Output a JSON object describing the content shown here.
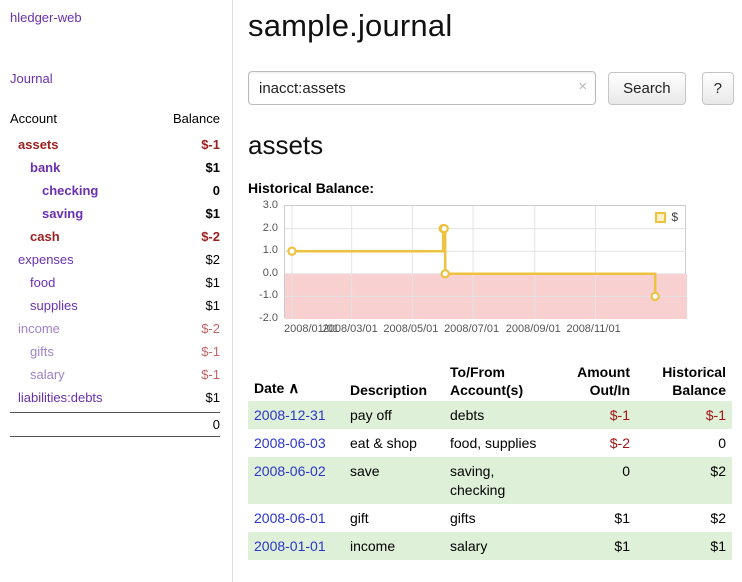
{
  "app": {
    "title": "hledger-web",
    "nav_journal": "Journal"
  },
  "sidebar": {
    "header": {
      "account": "Account",
      "balance": "Balance"
    },
    "accounts": [
      {
        "name": "assets",
        "balance": "$-1",
        "level": 1,
        "name_style": "neg-bold",
        "balance_style": "neg-bold"
      },
      {
        "name": "bank",
        "balance": "$1",
        "level": 2,
        "name_style": "link-bold",
        "balance_style": "bold"
      },
      {
        "name": "checking",
        "balance": "0",
        "level": 3,
        "name_style": "link-bold",
        "balance_style": "bold"
      },
      {
        "name": "saving",
        "balance": "$1",
        "level": 3,
        "name_style": "link-bold",
        "balance_style": "bold"
      },
      {
        "name": "cash",
        "balance": "$-2",
        "level": 2,
        "name_style": "neg-bold",
        "balance_style": "neg-bold"
      },
      {
        "name": "expenses",
        "balance": "$2",
        "level": 1,
        "name_style": "link",
        "balance_style": "plain"
      },
      {
        "name": "food",
        "balance": "$1",
        "level": 2,
        "name_style": "link",
        "balance_style": "plain"
      },
      {
        "name": "supplies",
        "balance": "$1",
        "level": 2,
        "name_style": "link",
        "balance_style": "plain"
      },
      {
        "name": "income",
        "balance": "$-2",
        "level": 1,
        "name_style": "link-muted",
        "balance_style": "neg-muted"
      },
      {
        "name": "gifts",
        "balance": "$-1",
        "level": 2,
        "name_style": "link-muted",
        "balance_style": "neg-muted"
      },
      {
        "name": "salary",
        "balance": "$-1",
        "level": 2,
        "name_style": "link-muted",
        "balance_style": "neg-muted"
      },
      {
        "name": "liabilities:debts",
        "balance": "$1",
        "level": 1,
        "name_style": "link",
        "balance_style": "plain"
      }
    ],
    "total": "0"
  },
  "main": {
    "title": "sample.journal",
    "search": {
      "value": "inacct:assets",
      "clear": "×",
      "button": "Search",
      "help": "?"
    },
    "heading": "assets",
    "chart_label": "Historical Balance:"
  },
  "chart_data": {
    "type": "line",
    "step": true,
    "title": "Historical Balance",
    "series": [
      {
        "name": "$",
        "color": "#edc240",
        "points": [
          [
            "2008-01-01",
            1
          ],
          [
            "2008-06-01",
            2
          ],
          [
            "2008-06-02",
            2
          ],
          [
            "2008-06-03",
            0
          ],
          [
            "2008-12-31",
            -1
          ]
        ]
      }
    ],
    "x_ticks": [
      "2008/01/01",
      "2008/03/01",
      "2008/05/01",
      "2008/07/01",
      "2008/09/01",
      "2008/11/01"
    ],
    "x_range": [
      "2007-12-25",
      "2009-02-01"
    ],
    "y_ticks": [
      "3.0",
      "2.0",
      "1.0",
      "0.0",
      "-1.0",
      "-2.0"
    ],
    "ylim": [
      -2,
      3
    ],
    "grid": true,
    "negative_region_color": "#f8d0d0",
    "legend": {
      "label": "$",
      "position": "top-right"
    }
  },
  "table": {
    "headers": [
      {
        "line1": "Date",
        "line2": "",
        "sort": "∧",
        "align": "left"
      },
      {
        "line1": "Description",
        "line2": "",
        "sort": "",
        "align": "left"
      },
      {
        "line1": "To/From",
        "line2": "Account(s)",
        "sort": "",
        "align": "left"
      },
      {
        "line1": "Amount",
        "line2": "Out/In",
        "sort": "",
        "align": "right"
      },
      {
        "line1": "Historical",
        "line2": "Balance",
        "sort": "",
        "align": "right"
      }
    ],
    "rows": [
      {
        "date": "2008-12-31",
        "description": "pay off",
        "accounts": "debts",
        "amount": "$-1",
        "balance": "$-1",
        "shaded": true
      },
      {
        "date": "2008-06-03",
        "description": "eat & shop",
        "accounts": "food, supplies",
        "amount": "$-2",
        "balance": "0",
        "shaded": false
      },
      {
        "date": "2008-06-02",
        "description": "save",
        "accounts": "saving, checking",
        "amount": "0",
        "balance": "$2",
        "shaded": true
      },
      {
        "date": "2008-06-01",
        "description": "gift",
        "accounts": "gifts",
        "amount": "$1",
        "balance": "$2",
        "shaded": false
      },
      {
        "date": "2008-01-01",
        "description": "income",
        "accounts": "salary",
        "amount": "$1",
        "balance": "$1",
        "shaded": true
      }
    ]
  }
}
